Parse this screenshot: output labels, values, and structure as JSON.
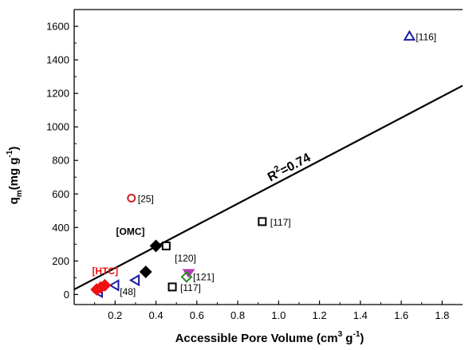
{
  "chart_data": {
    "type": "scatter",
    "xlabel": {
      "main": "Accessible Pore Volume (cm",
      "sup": "3",
      "after": " g",
      "sup2": "-1",
      "tail": ")"
    },
    "ylabel": {
      "main": "q",
      "sub": "m",
      "mid": "(mg g",
      "sup": "-1",
      "tail": ")"
    },
    "xlim": [
      0.0,
      1.9
    ],
    "ylim": [
      -60,
      1700
    ],
    "xticks": [
      "0.2",
      "0.4",
      "0.6",
      "0.8",
      "1.0",
      "1.2",
      "1.4",
      "1.6",
      "1.8"
    ],
    "yticks": [
      "0",
      "200",
      "400",
      "600",
      "800",
      "1000",
      "1200",
      "1400",
      "1600"
    ],
    "fit_line": {
      "intercept": 30,
      "slope": 640,
      "label_main": "R",
      "label_sup": "2",
      "label_tail": "=0.74"
    },
    "points": [
      {
        "x": 1.64,
        "y": 1540,
        "marker": "triangle-up",
        "color": "#1a1aa6",
        "filled": false,
        "label": "[116]"
      },
      {
        "x": 0.92,
        "y": 435,
        "marker": "square",
        "color": "#000000",
        "filled": false,
        "label": "[117]"
      },
      {
        "x": 0.48,
        "y": 45,
        "marker": "square",
        "color": "#000000",
        "filled": false,
        "label": "[117]"
      },
      {
        "x": 0.45,
        "y": 290,
        "marker": "square",
        "color": "#000000",
        "filled": false,
        "label": ""
      },
      {
        "x": 0.28,
        "y": 575,
        "marker": "circle",
        "color": "#cc2222",
        "filled": false,
        "label": "[25]"
      },
      {
        "x": 0.56,
        "y": 130,
        "marker": "triangle-down",
        "color": "#bb33bb",
        "filled": true,
        "label": "[120]"
      },
      {
        "x": 0.55,
        "y": 105,
        "marker": "diamond",
        "color": "#2a8a2a",
        "filled": false,
        "label": "[121]"
      },
      {
        "x": 0.4,
        "y": 290,
        "marker": "diamond",
        "color": "#000000",
        "filled": true,
        "label": "[OMC]"
      },
      {
        "x": 0.35,
        "y": 135,
        "marker": "diamond",
        "color": "#000000",
        "filled": true,
        "label": ""
      },
      {
        "x": 0.3,
        "y": 85,
        "marker": "triangle-left",
        "color": "#1a1aa6",
        "filled": false,
        "label": ""
      },
      {
        "x": 0.2,
        "y": 55,
        "marker": "triangle-left",
        "color": "#1a1aa6",
        "filled": false,
        "label": "[48]"
      },
      {
        "x": 0.12,
        "y": 15,
        "marker": "triangle-left",
        "color": "#1a1aa6",
        "filled": false,
        "label": ""
      },
      {
        "x": 0.11,
        "y": 30,
        "marker": "diamond",
        "color": "#ee1111",
        "filled": true,
        "label": ""
      },
      {
        "x": 0.13,
        "y": 42,
        "marker": "diamond",
        "color": "#ee1111",
        "filled": true,
        "label": ""
      },
      {
        "x": 0.15,
        "y": 55,
        "marker": "diamond",
        "color": "#ee1111",
        "filled": true,
        "label": "[HTC]"
      }
    ]
  }
}
